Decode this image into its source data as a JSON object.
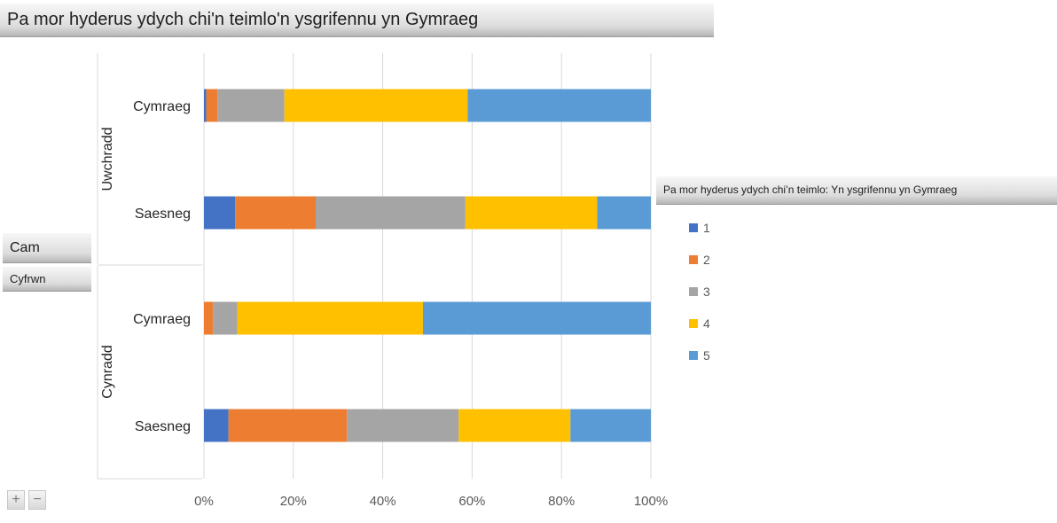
{
  "title": "Pa mor hyderus ydych chi'n teimlo'n ysgrifennu yn Gymraeg",
  "legend_title": "Pa mor hyderus ydych chi’n teimlo: Yn ysgrifennu yn Gymraeg",
  "filters": {
    "cam": "Cam",
    "cyfrwn": "Cyfrwn"
  },
  "zoom": {
    "plus": "+",
    "minus": "−"
  },
  "colors": {
    "1": "#4472c4",
    "2": "#ed7d31",
    "3": "#a5a5a5",
    "4": "#ffc000",
    "5": "#5b9bd5"
  },
  "chart_data": {
    "type": "bar",
    "orientation": "horizontal",
    "stacked": "100%",
    "groups": [
      {
        "name": "Uwchradd",
        "categories": [
          "Cymraeg",
          "Saesneg"
        ]
      },
      {
        "name": "Cynradd",
        "categories": [
          "Cymraeg",
          "Saesneg"
        ]
      }
    ],
    "categories": [
      "Uwchradd / Cymraeg",
      "Uwchradd / Saesneg",
      "Cynradd / Cymraeg",
      "Cynradd / Saesneg"
    ],
    "series": [
      {
        "name": "1",
        "values": [
          0.5,
          7,
          0,
          5.5
        ]
      },
      {
        "name": "2",
        "values": [
          2.5,
          18,
          2,
          26.5
        ]
      },
      {
        "name": "3",
        "values": [
          15,
          33.5,
          5.5,
          25
        ]
      },
      {
        "name": "4",
        "values": [
          41,
          29.5,
          41.5,
          25
        ]
      },
      {
        "name": "5",
        "values": [
          41,
          12,
          51,
          18
        ]
      }
    ],
    "xlim": [
      0,
      100
    ],
    "xticks": [
      "0%",
      "20%",
      "40%",
      "60%",
      "80%",
      "100%"
    ],
    "grid": true,
    "legend_position": "right"
  }
}
